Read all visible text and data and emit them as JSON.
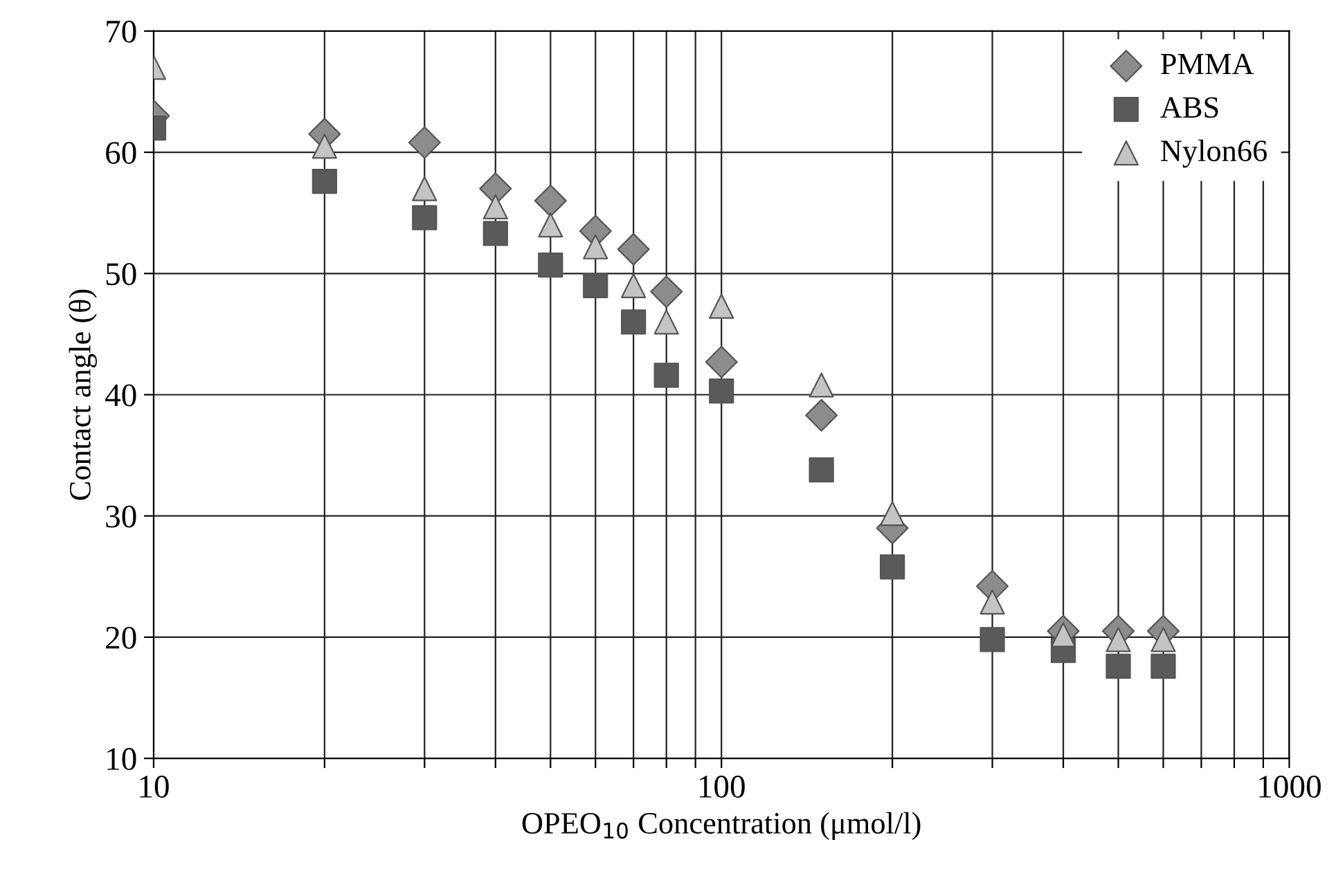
{
  "chart_data": {
    "type": "scatter",
    "xlabel": "OPEO$_{10}$ Concentration (μmol/l)",
    "ylabel": "Contact angle (θ)",
    "x": [
      10,
      20,
      30,
      40,
      50,
      60,
      70,
      80,
      100,
      150,
      200,
      300,
      400,
      500,
      600
    ],
    "series": [
      {
        "name": "PMMA",
        "color": "#8c8c8c",
        "marker": "diamond",
        "values": [
          63,
          61.5,
          60.8,
          57,
          56,
          53.5,
          52,
          48.5,
          42.7,
          38.3,
          29,
          24.2,
          20.5,
          20.5,
          20.5
        ]
      },
      {
        "name": "ABS",
        "color": "#5a5a5a",
        "marker": "square",
        "values": [
          62,
          57.6,
          54.6,
          53.3,
          50.7,
          49,
          46,
          41.6,
          40.3,
          33.8,
          25.8,
          19.8,
          18.9,
          17.6,
          17.6
        ]
      },
      {
        "name": "Nylon66",
        "color": "#c4c4c4",
        "marker": "triangle",
        "values": [
          67,
          60.5,
          57,
          55.5,
          54,
          52.2,
          49,
          46,
          47.3,
          40.8,
          30.2,
          22.9,
          20.2,
          19.8,
          19.8
        ]
      }
    ],
    "log": "x",
    "xlim": [
      10,
      1000
    ],
    "xticks": [
      10,
      {
        "value": 20,
        "label": null
      },
      {
        "value": 30,
        "label": null
      },
      {
        "value": 40,
        "label": null
      },
      {
        "value": 50,
        "label": null
      },
      {
        "value": 60,
        "label": null
      },
      {
        "value": 70,
        "label": null
      },
      {
        "value": 80,
        "label": null
      },
      {
        "value": 90,
        "label": null
      },
      100,
      {
        "value": 200,
        "label": null
      },
      {
        "value": 300,
        "label": null
      },
      {
        "value": 400,
        "label": null
      },
      {
        "value": 500,
        "label": null
      },
      {
        "value": 600,
        "label": null
      },
      {
        "value": 700,
        "label": null
      },
      {
        "value": 800,
        "label": null
      },
      {
        "value": 900,
        "label": null
      },
      1000
    ],
    "ylim": [
      10,
      70
    ],
    "yticks": [
      10,
      20,
      30,
      40,
      50,
      60,
      70
    ],
    "grid": true,
    "legend": "top right"
  }
}
